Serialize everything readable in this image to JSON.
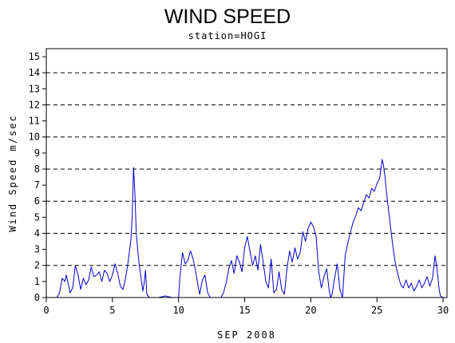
{
  "chart_data": {
    "type": "line",
    "title": "WIND SPEED",
    "subtitle": "station=HOGI",
    "xlabel": "SEP 2008",
    "ylabel": "Wind Speed m/sec",
    "xlim": [
      0,
      30.3
    ],
    "ylim": [
      0,
      15.5
    ],
    "x_ticks": [
      0,
      5,
      10,
      15,
      20,
      25,
      30
    ],
    "y_ticks": [
      0,
      1,
      2,
      3,
      4,
      5,
      6,
      7,
      8,
      9,
      10,
      11,
      12,
      13,
      14,
      15
    ],
    "reference_lines": [
      2,
      4,
      6,
      8,
      10,
      12,
      14
    ],
    "reference_line_style": "dashed",
    "line_color": "#0000cc",
    "series": [
      {
        "x": [
          0.0,
          0.8,
          1.0,
          1.2,
          1.4,
          1.5,
          1.6,
          1.8,
          2.0,
          2.2,
          2.4,
          2.6,
          2.8,
          3.0,
          3.2,
          3.4,
          3.6,
          3.8,
          4.0,
          4.2,
          4.4,
          4.6,
          4.8,
          5.0,
          5.2,
          5.4,
          5.6,
          5.8,
          6.0,
          6.2,
          6.4,
          6.5,
          6.6,
          6.7,
          6.8,
          7.0,
          7.2,
          7.3,
          7.4,
          7.5,
          7.6,
          7.8,
          8.0,
          8.5,
          9.0,
          9.5,
          10.0,
          10.1,
          10.3,
          10.5,
          10.7,
          10.9,
          11.1,
          11.3,
          11.5,
          11.6,
          11.8,
          12.0,
          12.2,
          12.4,
          12.5,
          12.6,
          12.8,
          13.0,
          13.2,
          13.4,
          13.6,
          13.8,
          14.0,
          14.2,
          14.4,
          14.6,
          14.8,
          15.0,
          15.2,
          15.4,
          15.6,
          15.8,
          16.0,
          16.2,
          16.4,
          16.6,
          16.8,
          17.0,
          17.2,
          17.4,
          17.6,
          17.8,
          18.0,
          18.2,
          18.4,
          18.6,
          18.8,
          19.0,
          19.2,
          19.4,
          19.6,
          19.8,
          20.0,
          20.2,
          20.4,
          20.6,
          20.8,
          21.0,
          21.2,
          21.4,
          21.5,
          21.6,
          21.8,
          22.0,
          22.2,
          22.4,
          22.6,
          22.8,
          23.0,
          23.2,
          23.4,
          23.6,
          23.8,
          24.0,
          24.2,
          24.4,
          24.6,
          24.8,
          25.0,
          25.2,
          25.4,
          25.5,
          25.6,
          25.8,
          26.0,
          26.2,
          26.4,
          26.6,
          26.8,
          27.0,
          27.2,
          27.4,
          27.6,
          27.8,
          28.0,
          28.2,
          28.4,
          28.6,
          28.8,
          29.0,
          29.2,
          29.4,
          29.6,
          29.7,
          29.8,
          30.0
        ],
        "y": [
          0.0,
          0.0,
          0.3,
          1.2,
          1.0,
          1.4,
          1.1,
          0.3,
          0.6,
          2.0,
          1.4,
          0.5,
          1.2,
          0.8,
          1.1,
          1.9,
          1.3,
          1.4,
          1.6,
          1.0,
          1.7,
          1.5,
          1.0,
          1.4,
          2.1,
          1.5,
          0.7,
          0.5,
          1.2,
          2.3,
          3.6,
          5.2,
          8.1,
          6.5,
          4.0,
          2.2,
          1.0,
          0.4,
          0.9,
          1.7,
          0.2,
          0.0,
          0.0,
          0.0,
          0.1,
          0.0,
          0.0,
          1.2,
          2.8,
          2.1,
          2.3,
          2.9,
          2.4,
          1.6,
          0.6,
          0.2,
          1.1,
          1.4,
          0.3,
          0.0,
          0.0,
          0.0,
          0.0,
          0.0,
          0.0,
          0.3,
          0.9,
          1.8,
          2.3,
          1.5,
          2.6,
          2.2,
          1.6,
          3.1,
          3.8,
          2.9,
          2.0,
          2.6,
          1.7,
          3.3,
          2.2,
          1.0,
          0.6,
          2.4,
          0.3,
          0.5,
          1.6,
          0.5,
          0.2,
          1.8,
          2.9,
          2.2,
          3.1,
          2.4,
          2.8,
          4.1,
          3.5,
          4.3,
          4.7,
          4.4,
          3.8,
          1.6,
          0.6,
          1.3,
          1.8,
          0.4,
          0.0,
          0.2,
          1.2,
          2.1,
          0.5,
          0.0,
          2.6,
          3.4,
          4.1,
          4.7,
          5.1,
          5.6,
          5.4,
          5.9,
          6.4,
          6.2,
          6.8,
          6.6,
          7.1,
          7.4,
          8.6,
          8.2,
          7.6,
          6.0,
          4.6,
          3.2,
          2.1,
          1.4,
          0.8,
          0.6,
          1.1,
          0.6,
          0.9,
          0.4,
          0.7,
          1.1,
          0.6,
          0.9,
          1.3,
          0.7,
          1.2,
          2.6,
          1.4,
          0.5,
          0.1,
          0.0
        ]
      }
    ]
  }
}
